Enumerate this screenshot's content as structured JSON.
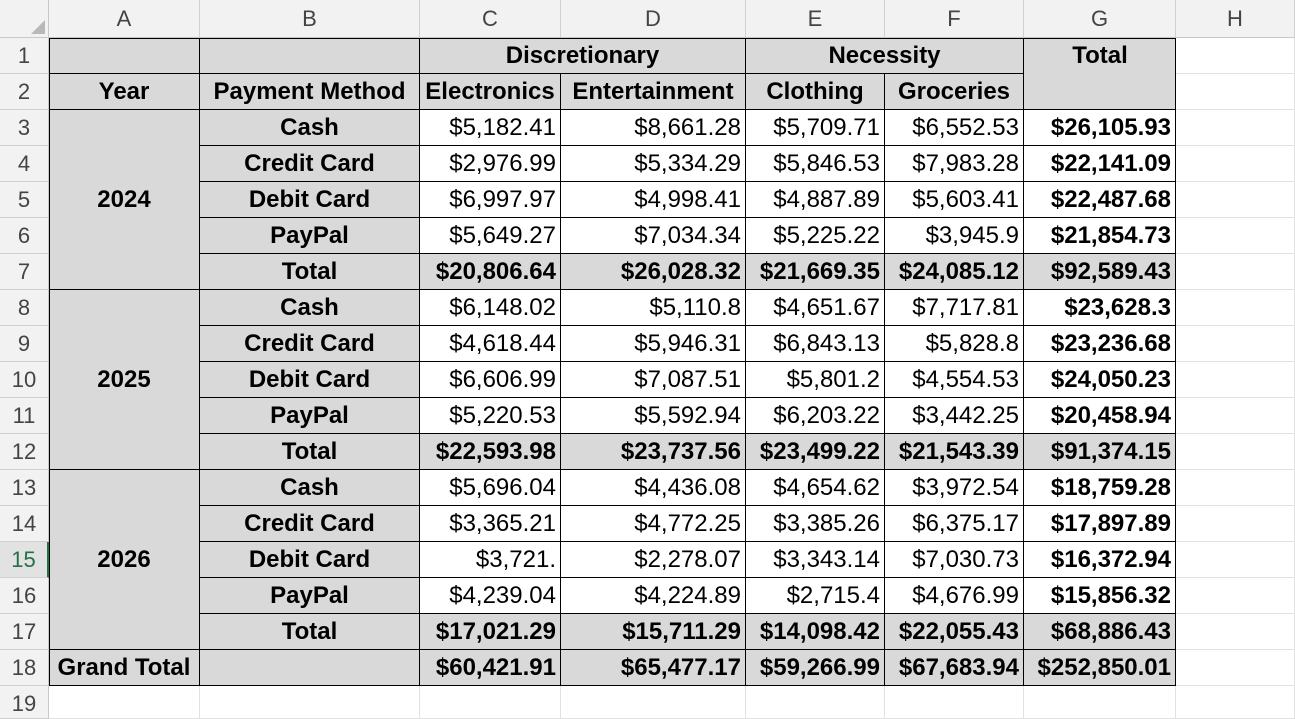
{
  "columns": [
    "A",
    "B",
    "C",
    "D",
    "E",
    "F",
    "G",
    "H"
  ],
  "row_numbers": [
    "1",
    "2",
    "3",
    "4",
    "5",
    "6",
    "7",
    "8",
    "9",
    "10",
    "11",
    "12",
    "13",
    "14",
    "15",
    "16",
    "17",
    "18",
    "19"
  ],
  "active_row": "15",
  "header": {
    "discretionary": "Discretionary",
    "necessity": "Necessity",
    "total": "Total",
    "year": "Year",
    "payment_method": "Payment Method",
    "electronics": "Electronics",
    "entertainment": "Entertainment",
    "clothing": "Clothing",
    "groceries": "Groceries"
  },
  "groups": [
    {
      "year": "2024",
      "rows": [
        {
          "method": "Cash",
          "electronics": "$5,182.41",
          "entertainment": "$8,661.28",
          "clothing": "$5,709.71",
          "groceries": "$6,552.53",
          "total": "$26,105.93"
        },
        {
          "method": "Credit Card",
          "electronics": "$2,976.99",
          "entertainment": "$5,334.29",
          "clothing": "$5,846.53",
          "groceries": "$7,983.28",
          "total": "$22,141.09"
        },
        {
          "method": "Debit Card",
          "electronics": "$6,997.97",
          "entertainment": "$4,998.41",
          "clothing": "$4,887.89",
          "groceries": "$5,603.41",
          "total": "$22,487.68"
        },
        {
          "method": "PayPal",
          "electronics": "$5,649.27",
          "entertainment": "$7,034.34",
          "clothing": "$5,225.22",
          "groceries": "$3,945.9",
          "total": "$21,854.73"
        }
      ],
      "subtotal": {
        "label": "Total",
        "electronics": "$20,806.64",
        "entertainment": "$26,028.32",
        "clothing": "$21,669.35",
        "groceries": "$24,085.12",
        "total": "$92,589.43"
      }
    },
    {
      "year": "2025",
      "rows": [
        {
          "method": "Cash",
          "electronics": "$6,148.02",
          "entertainment": "$5,110.8",
          "clothing": "$4,651.67",
          "groceries": "$7,717.81",
          "total": "$23,628.3"
        },
        {
          "method": "Credit Card",
          "electronics": "$4,618.44",
          "entertainment": "$5,946.31",
          "clothing": "$6,843.13",
          "groceries": "$5,828.8",
          "total": "$23,236.68"
        },
        {
          "method": "Debit Card",
          "electronics": "$6,606.99",
          "entertainment": "$7,087.51",
          "clothing": "$5,801.2",
          "groceries": "$4,554.53",
          "total": "$24,050.23"
        },
        {
          "method": "PayPal",
          "electronics": "$5,220.53",
          "entertainment": "$5,592.94",
          "clothing": "$6,203.22",
          "groceries": "$3,442.25",
          "total": "$20,458.94"
        }
      ],
      "subtotal": {
        "label": "Total",
        "electronics": "$22,593.98",
        "entertainment": "$23,737.56",
        "clothing": "$23,499.22",
        "groceries": "$21,543.39",
        "total": "$91,374.15"
      }
    },
    {
      "year": "2026",
      "rows": [
        {
          "method": "Cash",
          "electronics": "$5,696.04",
          "entertainment": "$4,436.08",
          "clothing": "$4,654.62",
          "groceries": "$3,972.54",
          "total": "$18,759.28"
        },
        {
          "method": "Credit Card",
          "electronics": "$3,365.21",
          "entertainment": "$4,772.25",
          "clothing": "$3,385.26",
          "groceries": "$6,375.17",
          "total": "$17,897.89"
        },
        {
          "method": "Debit Card",
          "electronics": "$3,721.",
          "entertainment": "$2,278.07",
          "clothing": "$3,343.14",
          "groceries": "$7,030.73",
          "total": "$16,372.94"
        },
        {
          "method": "PayPal",
          "electronics": "$4,239.04",
          "entertainment": "$4,224.89",
          "clothing": "$2,715.4",
          "groceries": "$4,676.99",
          "total": "$15,856.32"
        }
      ],
      "subtotal": {
        "label": "Total",
        "electronics": "$17,021.29",
        "entertainment": "$15,711.29",
        "clothing": "$14,098.42",
        "groceries": "$22,055.43",
        "total": "$68,886.43"
      }
    }
  ],
  "grand_total": {
    "label": "Grand Total",
    "electronics": "$60,421.91",
    "entertainment": "$65,477.17",
    "clothing": "$59,266.99",
    "groceries": "$67,683.94",
    "total": "$252,850.01"
  }
}
